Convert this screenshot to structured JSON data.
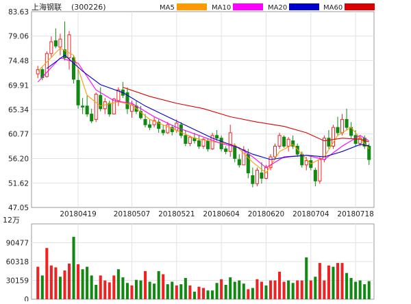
{
  "stock": {
    "name": "上海钢联",
    "code": "(300226)"
  },
  "legend": [
    {
      "label": "MA5",
      "color": "#FF9900"
    },
    {
      "label": "MA10",
      "color": "#FF00FF"
    },
    {
      "label": "MA20",
      "color": "#0000CC"
    },
    {
      "label": "MA60",
      "color": "#DD0000"
    }
  ],
  "colors": {
    "up": "#EE2222",
    "down": "#118811"
  },
  "chart_data": [
    {
      "type": "candlestick",
      "title": "",
      "y_ticks": [
        "83.63",
        "79.06",
        "74.48",
        "69.91",
        "65.34",
        "60.77",
        "56.20",
        "51.62",
        "47.05"
      ],
      "ylim": [
        47.05,
        83.63
      ],
      "x_ticks": [
        "20180419",
        "20180507",
        "20180521",
        "20180604",
        "20180620",
        "20180704",
        "20180718"
      ],
      "x_tick_index": [
        9,
        21,
        31,
        41,
        51,
        61,
        71
      ],
      "grid": true,
      "series_ohlc": [
        [
          72.0,
          73.5,
          71.2,
          72.8
        ],
        [
          72.8,
          73.2,
          70.8,
          71.3
        ],
        [
          71.5,
          76.2,
          71.3,
          75.8
        ],
        [
          75.8,
          79.0,
          75.0,
          78.0
        ],
        [
          78.2,
          80.5,
          76.8,
          77.2
        ],
        [
          77.0,
          79.5,
          75.5,
          78.5
        ],
        [
          76.5,
          81.8,
          74.5,
          75.0
        ],
        [
          75.0,
          80.0,
          72.8,
          79.3
        ],
        [
          75.0,
          75.5,
          70.2,
          71.0
        ],
        [
          70.8,
          73.0,
          65.5,
          66.2
        ],
        [
          66.0,
          67.5,
          64.5,
          65.8
        ],
        [
          66.0,
          68.0,
          64.0,
          64.5
        ],
        [
          64.5,
          65.5,
          62.8,
          63.2
        ],
        [
          63.5,
          68.5,
          63.0,
          68.2
        ],
        [
          68.0,
          69.5,
          65.0,
          65.5
        ],
        [
          65.5,
          67.5,
          64.5,
          66.8
        ],
        [
          66.5,
          67.0,
          64.0,
          64.5
        ],
        [
          64.5,
          67.5,
          64.5,
          67.3
        ],
        [
          67.0,
          69.5,
          66.0,
          69.0
        ],
        [
          69.0,
          70.5,
          67.5,
          68.0
        ],
        [
          68.5,
          69.5,
          64.5,
          65.5
        ],
        [
          65.0,
          67.0,
          63.8,
          66.2
        ],
        [
          66.0,
          67.0,
          64.5,
          65.0
        ],
        [
          65.0,
          66.0,
          63.5,
          63.8
        ],
        [
          63.5,
          64.5,
          62.0,
          62.5
        ],
        [
          62.5,
          63.5,
          61.5,
          62.0
        ],
        [
          62.5,
          64.0,
          62.0,
          63.3
        ],
        [
          63.0,
          63.5,
          61.0,
          61.8
        ],
        [
          61.5,
          62.5,
          60.5,
          61.0
        ],
        [
          61.0,
          63.0,
          60.8,
          62.5
        ],
        [
          62.0,
          62.5,
          60.5,
          61.2
        ],
        [
          61.5,
          63.5,
          61.0,
          62.8
        ],
        [
          62.5,
          63.0,
          60.0,
          60.5
        ],
        [
          60.5,
          61.5,
          58.5,
          59.0
        ],
        [
          59.0,
          60.5,
          58.5,
          60.2
        ],
        [
          60.0,
          61.0,
          59.0,
          59.5
        ],
        [
          59.5,
          60.5,
          58.0,
          58.5
        ],
        [
          58.5,
          60.0,
          58.0,
          59.8
        ],
        [
          59.5,
          60.0,
          57.5,
          58.0
        ],
        [
          58.0,
          61.0,
          57.8,
          60.5
        ],
        [
          60.5,
          61.5,
          59.5,
          60.0
        ],
        [
          60.0,
          60.5,
          57.5,
          58.0
        ],
        [
          58.0,
          58.5,
          57.0,
          57.5
        ],
        [
          57.5,
          62.5,
          56.5,
          61.0
        ],
        [
          58.5,
          59.0,
          55.5,
          56.2
        ],
        [
          56.0,
          57.0,
          54.5,
          55.0
        ],
        [
          55.0,
          58.5,
          55.0,
          57.8
        ],
        [
          57.0,
          58.0,
          52.5,
          53.5
        ],
        [
          53.0,
          54.5,
          50.8,
          51.5
        ],
        [
          51.5,
          54.5,
          51.0,
          54.0
        ],
        [
          53.5,
          55.5,
          51.5,
          52.5
        ],
        [
          52.5,
          55.0,
          52.3,
          54.5
        ],
        [
          54.5,
          57.0,
          54.0,
          56.5
        ],
        [
          56.5,
          59.0,
          56.0,
          58.5
        ],
        [
          58.5,
          61.0,
          58.0,
          60.5
        ],
        [
          60.2,
          60.5,
          58.2,
          58.5
        ],
        [
          58.5,
          60.2,
          57.5,
          59.8
        ],
        [
          59.5,
          60.5,
          58.0,
          58.5
        ],
        [
          58.5,
          59.0,
          56.5,
          57.0
        ],
        [
          57.0,
          57.5,
          54.5,
          55.0
        ],
        [
          55.0,
          56.5,
          54.0,
          55.8
        ],
        [
          55.8,
          56.5,
          54.0,
          54.5
        ],
        [
          54.0,
          54.5,
          51.0,
          52.0
        ],
        [
          52.0,
          56.5,
          51.5,
          56.0
        ],
        [
          56.0,
          60.5,
          55.5,
          60.0
        ],
        [
          60.0,
          61.5,
          58.0,
          58.5
        ],
        [
          58.5,
          62.5,
          58.0,
          62.0
        ],
        [
          62.0,
          64.0,
          60.5,
          61.0
        ],
        [
          61.0,
          64.5,
          60.5,
          63.5
        ],
        [
          63.5,
          65.5,
          61.5,
          62.0
        ],
        [
          62.0,
          63.0,
          60.0,
          60.5
        ],
        [
          60.5,
          61.5,
          58.5,
          59.0
        ],
        [
          59.0,
          60.5,
          58.5,
          60.0
        ],
        [
          60.0,
          60.5,
          58.0,
          58.5
        ],
        [
          58.5,
          59.0,
          55.0,
          56.0
        ]
      ],
      "ma": {
        "MA5": [
          [
            0,
            72.5
          ],
          [
            5,
            76.8
          ],
          [
            8,
            75.5
          ],
          [
            11,
            68.0
          ],
          [
            14,
            66.0
          ],
          [
            18,
            66.8
          ],
          [
            21,
            66.2
          ],
          [
            25,
            63.5
          ],
          [
            30,
            61.8
          ],
          [
            35,
            60.0
          ],
          [
            40,
            59.2
          ],
          [
            44,
            58.8
          ],
          [
            48,
            55.5
          ],
          [
            51,
            53.5
          ],
          [
            54,
            57.5
          ],
          [
            57,
            58.8
          ],
          [
            61,
            55.2
          ],
          [
            64,
            56.5
          ],
          [
            67,
            60.5
          ],
          [
            70,
            62.0
          ],
          [
            74,
            58.0
          ]
        ],
        "MA10": [
          [
            0,
            70.5
          ],
          [
            5,
            75.0
          ],
          [
            9,
            74.0
          ],
          [
            13,
            69.0
          ],
          [
            17,
            67.0
          ],
          [
            21,
            66.5
          ],
          [
            26,
            64.0
          ],
          [
            31,
            62.0
          ],
          [
            36,
            60.5
          ],
          [
            41,
            59.0
          ],
          [
            45,
            58.2
          ],
          [
            48,
            56.5
          ],
          [
            51,
            54.5
          ],
          [
            55,
            56.5
          ],
          [
            60,
            56.8
          ],
          [
            64,
            56.0
          ],
          [
            68,
            58.5
          ],
          [
            72,
            60.5
          ],
          [
            74,
            59.5
          ]
        ],
        "MA20": [
          [
            2,
            73.0
          ],
          [
            6,
            75.5
          ],
          [
            10,
            72.5
          ],
          [
            14,
            70.0
          ],
          [
            19,
            68.5
          ],
          [
            24,
            66.0
          ],
          [
            29,
            64.0
          ],
          [
            34,
            62.0
          ],
          [
            39,
            60.0
          ],
          [
            44,
            58.5
          ],
          [
            48,
            57.0
          ],
          [
            52,
            56.0
          ],
          [
            56,
            56.5
          ],
          [
            60,
            56.8
          ],
          [
            64,
            56.5
          ],
          [
            68,
            57.5
          ],
          [
            72,
            58.8
          ],
          [
            74,
            58.6
          ]
        ],
        "MA60": [
          [
            19,
            69.5
          ],
          [
            25,
            67.8
          ],
          [
            31,
            66.5
          ],
          [
            37,
            65.5
          ],
          [
            43,
            64.0
          ],
          [
            49,
            63.0
          ],
          [
            55,
            62.2
          ],
          [
            60,
            61.0
          ],
          [
            64,
            59.5
          ],
          [
            68,
            60.0
          ],
          [
            72,
            59.8
          ],
          [
            74,
            59.3
          ]
        ]
      }
    },
    {
      "type": "bar",
      "title": "",
      "unit_label": "12万",
      "y_ticks": [
        "90477",
        "60318",
        "30159",
        "0"
      ],
      "ylim": [
        0,
        120636
      ],
      "values": [
        [
          52000,
          1
        ],
        [
          38000,
          0
        ],
        [
          82000,
          1
        ],
        [
          54000,
          1
        ],
        [
          51000,
          1
        ],
        [
          36000,
          0
        ],
        [
          46000,
          1
        ],
        [
          57000,
          1
        ],
        [
          100000,
          0
        ],
        [
          56000,
          1
        ],
        [
          48000,
          0
        ],
        [
          52000,
          0
        ],
        [
          38000,
          0
        ],
        [
          23000,
          0
        ],
        [
          38000,
          1
        ],
        [
          30000,
          1
        ],
        [
          27000,
          1
        ],
        [
          38000,
          1
        ],
        [
          48000,
          0
        ],
        [
          35000,
          0
        ],
        [
          26000,
          0
        ],
        [
          22000,
          1
        ],
        [
          31000,
          0
        ],
        [
          30000,
          0
        ],
        [
          45000,
          1
        ],
        [
          28000,
          0
        ],
        [
          25000,
          0
        ],
        [
          45000,
          0
        ],
        [
          40000,
          1
        ],
        [
          24000,
          0
        ],
        [
          28000,
          0
        ],
        [
          22000,
          1
        ],
        [
          24000,
          0
        ],
        [
          34000,
          0
        ],
        [
          22000,
          1
        ],
        [
          12000,
          0
        ],
        [
          20000,
          1
        ],
        [
          18000,
          1
        ],
        [
          14000,
          0
        ],
        [
          14000,
          0
        ],
        [
          26000,
          0
        ],
        [
          32000,
          1
        ],
        [
          23000,
          0
        ],
        [
          35000,
          0
        ],
        [
          28000,
          0
        ],
        [
          30000,
          0
        ],
        [
          25000,
          0
        ],
        [
          16000,
          1
        ],
        [
          18000,
          0
        ],
        [
          32000,
          1
        ],
        [
          28000,
          1
        ],
        [
          22000,
          0
        ],
        [
          30000,
          1
        ],
        [
          30000,
          1
        ],
        [
          44000,
          1
        ],
        [
          28000,
          1
        ],
        [
          30000,
          0
        ],
        [
          26000,
          0
        ],
        [
          30000,
          1
        ],
        [
          30000,
          1
        ],
        [
          67000,
          0
        ],
        [
          30000,
          1
        ],
        [
          36000,
          0
        ],
        [
          58000,
          1
        ],
        [
          30000,
          1
        ],
        [
          54000,
          1
        ],
        [
          52000,
          0
        ],
        [
          58000,
          1
        ],
        [
          58000,
          1
        ],
        [
          42000,
          0
        ],
        [
          34000,
          0
        ],
        [
          28000,
          0
        ],
        [
          30000,
          0
        ],
        [
          24000,
          0
        ],
        [
          29000,
          0
        ]
      ]
    }
  ]
}
